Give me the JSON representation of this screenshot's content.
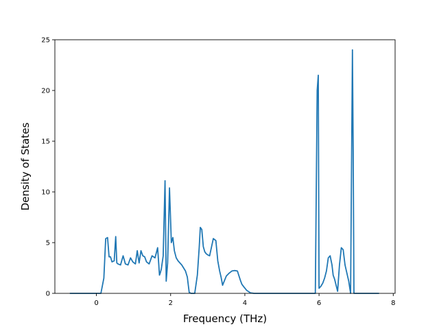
{
  "chart_data": {
    "type": "line",
    "title": "",
    "xlabel": "Frequency (THz)",
    "ylabel": "Density of States",
    "xlim": [
      -1.12,
      8.05
    ],
    "ylim": [
      0,
      25
    ],
    "xticks": [
      0,
      2,
      4,
      6,
      8
    ],
    "yticks": [
      0,
      5,
      10,
      15,
      20,
      25
    ],
    "grid": false,
    "legend": "none",
    "series": [
      {
        "color": "#1f77b4",
        "x": [
          -0.7,
          0.0,
          0.12,
          0.2,
          0.25,
          0.3,
          0.34,
          0.38,
          0.42,
          0.48,
          0.52,
          0.55,
          0.58,
          0.65,
          0.72,
          0.78,
          0.85,
          0.92,
          0.98,
          1.05,
          1.1,
          1.15,
          1.2,
          1.25,
          1.3,
          1.35,
          1.42,
          1.5,
          1.58,
          1.65,
          1.7,
          1.72,
          1.75,
          1.8,
          1.85,
          1.88,
          1.92,
          1.97,
          2.02,
          2.06,
          2.1,
          2.15,
          2.2,
          2.3,
          2.4,
          2.45,
          2.5,
          2.55,
          2.65,
          2.72,
          2.77,
          2.8,
          2.84,
          2.88,
          2.92,
          2.96,
          3.0,
          3.05,
          3.15,
          3.22,
          3.27,
          3.32,
          3.36,
          3.4,
          3.5,
          3.58,
          3.65,
          3.72,
          3.8,
          3.88,
          3.92,
          3.98,
          4.05,
          4.15,
          4.25,
          4.35,
          5.2,
          5.9,
          5.95,
          5.98,
          6.0,
          6.05,
          6.1,
          6.15,
          6.2,
          6.25,
          6.3,
          6.35,
          6.38,
          6.42,
          6.5,
          6.55,
          6.6,
          6.65,
          6.7,
          6.75,
          6.8,
          6.85,
          6.9,
          6.92,
          6.94,
          7.0,
          7.6
        ],
        "y": [
          0,
          0,
          0,
          1.5,
          5.4,
          5.5,
          3.6,
          3.6,
          3.1,
          3.2,
          5.6,
          3.0,
          2.9,
          2.8,
          3.7,
          2.9,
          2.8,
          3.5,
          3.1,
          2.9,
          4.2,
          3.0,
          4.2,
          3.7,
          3.6,
          3.1,
          2.9,
          3.7,
          3.5,
          4.5,
          1.8,
          2.0,
          2.4,
          3.7,
          11.1,
          1.2,
          3.0,
          10.4,
          5.0,
          5.5,
          4.2,
          3.5,
          3.2,
          2.8,
          2.2,
          1.6,
          0.1,
          0,
          0,
          1.8,
          4.5,
          6.5,
          6.3,
          4.6,
          4.1,
          3.9,
          3.8,
          3.7,
          5.4,
          5.2,
          3.2,
          2.2,
          1.6,
          0.8,
          1.7,
          2.0,
          2.2,
          2.25,
          2.2,
          1.3,
          0.9,
          0.6,
          0.3,
          0.05,
          0,
          0,
          0,
          0,
          20.0,
          21.5,
          0.5,
          0.7,
          1.0,
          1.5,
          2.2,
          3.5,
          3.7,
          2.8,
          1.8,
          1.4,
          0.2,
          2.8,
          4.5,
          4.3,
          2.8,
          2.0,
          1.2,
          0,
          24.0,
          14.0,
          0,
          0,
          0
        ]
      }
    ]
  }
}
